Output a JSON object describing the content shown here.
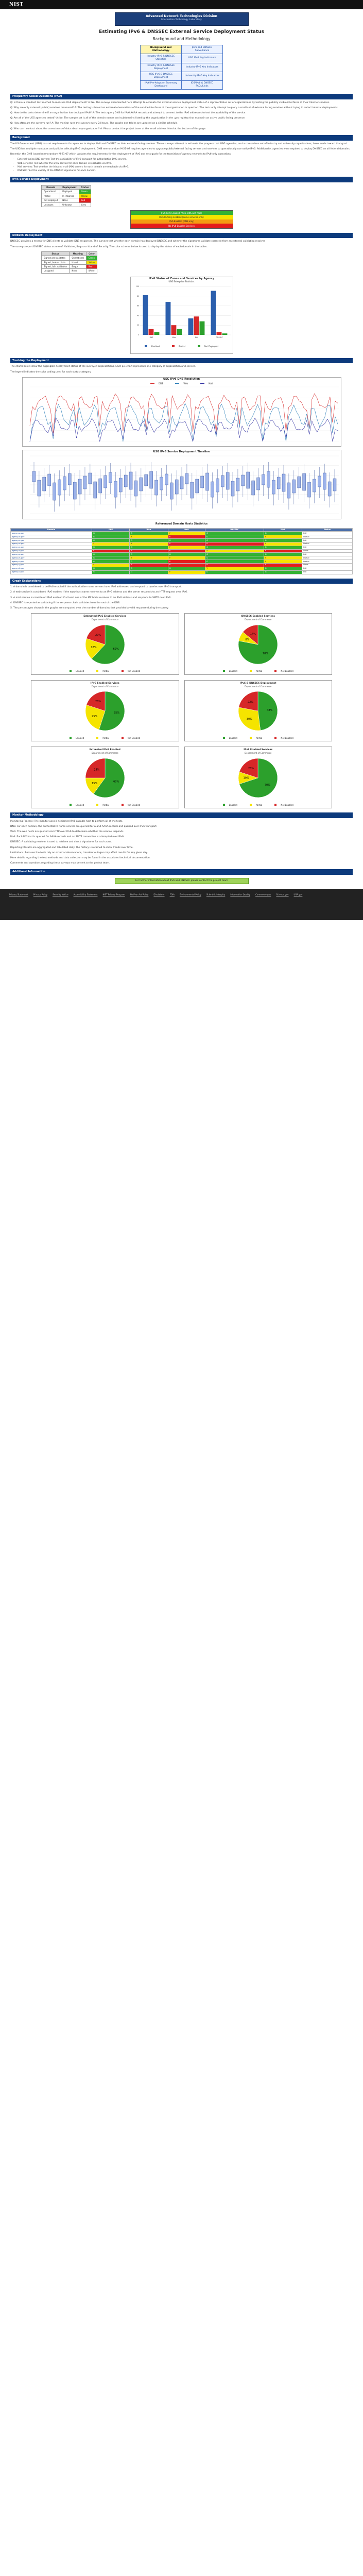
{
  "header": {
    "logo": "NIST",
    "banner_line1": "Advanced Network Technologies Division",
    "banner_line2": "Information Technology Laboratory"
  },
  "title": "Estimating IPv6 & DNSSEC External Service Deployment Status",
  "subtitle": "Background and Methodology",
  "nav": [
    [
      "Background and Methodology",
      "Ipv6 and DNSSEC Surveillance"
    ],
    [
      "Industry IPv6 & DNSSEC Statistics",
      "USG IPv6 Key Indicators"
    ],
    [
      "Industry IPv6 & DNSSEC Deployment",
      "Industry IPv6 Key Indicators"
    ],
    [
      "USG IPv6 & DNSSEC Deployment",
      "University IPv6 Key Indicators"
    ],
    [
      "IPv6 Pre-Adoption Summary Dashboard",
      "IDS/IPv6 & DNSSEC FAQs/Links"
    ]
  ],
  "sections": {
    "s1": "Frequently Asked Questions (FAQ)",
    "s2": "Background",
    "s3": "IPv6 Service Deployment",
    "s4": "DNSSEC Deployment",
    "s5": "Tracking the Deployment",
    "s6": "Graph Explanations",
    "s7": "Monitor Methodology",
    "s8": "Additional Information"
  },
  "faq": [
    "Q: Is there a standard test method to measure IPv6 deployment? A: No. The surveys documented here attempt to estimate the external service deployment status of a representative set of organizations by testing the publicly visible interfaces of their Internet services.",
    "Q: Why are only external (public) services measured? A: The testing is based on external observations of the service interfaces of the organization in question. The tests only attempt to query a small set of external facing services without trying to detect internal deployments.",
    "Q: How do the tests determine if an organization has deployed IPv6? A: The tests query DNS for IPv6 AAAA records and attempt to connect to the IPv6 addresses to test the availability of the service.",
    "Q: Are all of the USG agencies tested? A: No. The sample set is all of the domain names and subdomains listed by the organization in the .gov registry that maintain an active public facing presence.",
    "Q: How often are the surveys run? A: The monitor runs the surveys every 24 hours. The graphs and tables are updated on a similar schedule.",
    "Q: Who can I contact about the correctness of data about my organization? A: Please contact the project team at the email address listed at the bottom of this page."
  ],
  "background_paras": [
    "The US Government (USG) has set requirements for agencies to deploy IPv6 and DNSSEC on their external facing services. These surveys attempt to estimate the progress that USG agencies, and a comparison set of industry and university organizations, have made toward that goal.",
    "The USG has multiple mandates and policies affecting IPv6 deployment. OMB memorandum M-21-07 requires agencies to upgrade public/external facing servers and services to operationally use native IPv6. Additionally, agencies were required to deploy DNSSEC on all federal domains.",
    "Recently, the OMB issued memorandum M-21-07 which updates the requirements for the deployment of IPv6 and sets goals for the transition of agency networks to IPv6-only operations."
  ],
  "bullets": [
    "External facing DNS servers: Test the availability of IPv6 transport for authoritative DNS servers.",
    "Web services: Test whether the www service for each domain is reachable via IPv6.",
    "Mail services: Test whether the inbound mail (MX) servers for each domain are reachable via IPv6.",
    "DNSSEC: Test the validity of the DNSSEC signatures for each domain."
  ],
  "table1": {
    "headers": [
      "Domain",
      "Deployment",
      "Status"
    ],
    "rows": [
      [
        "Operational",
        "Deployed",
        "Green"
      ],
      [
        "Partial",
        "In Progress",
        "Yellow"
      ],
      [
        "Not Deployed",
        "None",
        "Red"
      ],
      [
        "Unknown",
        "Unknown",
        "Grey"
      ]
    ]
  },
  "box1": [
    "IPv6 Fully Enabled (Web, DNS and Mail)",
    "IPv6 Partially Enabled (Some services only)",
    "IPv6 Enabled (DNS only)",
    "No IPv6 Enabled Services"
  ],
  "dnssec_paras": [
    "DNSSEC provides a means for DNS clients to validate DNS responses. The surveys test whether each domain has deployed DNSSEC and whether the signatures validate correctly from an external validating resolver.",
    "The surveys report DNSSEC status as one of: Validates, Bogus or Island of Security. The color scheme below is used to display the status of each domain in the tables."
  ],
  "table2": {
    "headers": [
      "Status",
      "Meaning",
      "Color"
    ],
    "rows": [
      [
        "Signed and validates",
        "Operational",
        "Green"
      ],
      [
        "Signed, broken chain",
        "Island",
        "Yellow"
      ],
      [
        "Signed, fails validation",
        "Bogus",
        "Red"
      ],
      [
        "Unsigned",
        "None",
        "White"
      ]
    ]
  },
  "chart_bar": {
    "title": "IPv6 Status of Zones and Services by Agency",
    "subtitle": "USG Enterprise Statistics",
    "categories": [
      "DNS",
      "Web",
      "Mail",
      "DNSSEC"
    ],
    "series": [
      {
        "name": "Enabled",
        "color": "#2b5fad",
        "values": [
          82,
          68,
          34,
          91
        ]
      },
      {
        "name": "Partial",
        "color": "#d62728",
        "values": [
          12,
          20,
          38,
          6
        ]
      },
      {
        "name": "Not Deployed",
        "color": "#2ca02c",
        "values": [
          6,
          12,
          28,
          3
        ]
      }
    ]
  },
  "chart_line": {
    "title": "USG IPv6 DNS Resolution",
    "legend": [
      "DNS",
      "Web",
      "Mail"
    ]
  },
  "chart_box": {
    "title": "USG IPv6 Service Deployment Timeline"
  },
  "big_table": {
    "title": "Referenced Domain Hosts Statistics",
    "headers": [
      "Domain",
      "DNS",
      "Web",
      "Mail",
      "DNSSEC",
      "IPv6",
      "Status"
    ],
    "rows": [
      [
        "agency-a.gov",
        "G",
        "G",
        "Y",
        "G",
        "G",
        "Full"
      ],
      [
        "agency-b.gov",
        "G",
        "Y",
        "R",
        "G",
        "Y",
        "Partial"
      ],
      [
        "agency-c.gov",
        "G",
        "G",
        "G",
        "G",
        "G",
        "Full"
      ],
      [
        "agency-d.gov",
        "Y",
        "Y",
        "R",
        "R",
        "Y",
        "Partial"
      ],
      [
        "agency-e.gov",
        "G",
        "G",
        "Y",
        "G",
        "G",
        "Full"
      ],
      [
        "agency-f.gov",
        "R",
        "R",
        "R",
        "Y",
        "R",
        "None"
      ],
      [
        "agency-g.gov",
        "G",
        "G",
        "G",
        "G",
        "G",
        "Full"
      ],
      [
        "agency-h.gov",
        "G",
        "Y",
        "Y",
        "G",
        "Y",
        "Partial"
      ],
      [
        "agency-i.gov",
        "G",
        "G",
        "R",
        "G",
        "Y",
        "Partial"
      ],
      [
        "agency-j.gov",
        "Y",
        "R",
        "R",
        "R",
        "R",
        "None"
      ],
      [
        "agency-k.gov",
        "G",
        "G",
        "G",
        "Y",
        "G",
        "Full"
      ],
      [
        "agency-l.gov",
        "G",
        "G",
        "Y",
        "G",
        "G",
        "Full"
      ]
    ]
  },
  "graph_paras": [
    "1. A domain is considered to be IPv6 enabled if the authoritative name servers have IPv6 addresses, and respond to queries over IPv6 transport.",
    "2. A web service is considered IPv6 enabled if the www host name resolves to an IPv6 address and the server responds to an HTTP request over IPv6.",
    "3. A mail service is considered IPv6 enabled if at least one of the MX hosts resolves to an IPv6 address and responds to SMTP over IPv6.",
    "4. DNSSEC is reported as validating if the response chain validates from the root of the DNS.",
    "5. The percentages shown in the graphs are computed over the number of domains that provided a valid response during the survey."
  ],
  "tracking_paras": [
    "The charts below show the aggregate deployment status of the surveyed organizations. Each pie chart represents one category of organization and service.",
    "The legend indicates the color coding used for each status category."
  ],
  "pies": [
    {
      "title": "Estimated IPv6 Enabled Services",
      "sub": "Department of Commerce",
      "values": [
        62,
        18,
        20
      ],
      "colors": [
        "#2ca02c",
        "#f5e400",
        "#d62728"
      ]
    },
    {
      "title": "DNSSEC Enabled Services",
      "sub": "Department of Commerce",
      "values": [
        78,
        8,
        14
      ],
      "colors": [
        "#2ca02c",
        "#f5e400",
        "#d62728"
      ]
    },
    {
      "title": "IPv6 Enabled Services",
      "sub": "Department of Commerce",
      "values": [
        55,
        25,
        20
      ],
      "colors": [
        "#2ca02c",
        "#f5e400",
        "#d62728"
      ]
    },
    {
      "title": "IPv6 & DNSSEC Deployment",
      "sub": "Department of Commerce",
      "values": [
        48,
        30,
        22
      ],
      "colors": [
        "#2ca02c",
        "#f5e400",
        "#d62728"
      ]
    },
    {
      "title": "Estimated IPv6 Enabled",
      "sub": "Department of Commerce",
      "values": [
        60,
        15,
        25
      ],
      "colors": [
        "#2ca02c",
        "#f5e400",
        "#d62728"
      ]
    },
    {
      "title": "IPv6 Enabled Services",
      "sub": "Department of Commerce",
      "values": [
        70,
        10,
        20
      ],
      "colors": [
        "#2ca02c",
        "#f5e400",
        "#d62728"
      ]
    }
  ],
  "pie_legend": [
    "Enabled",
    "Partial",
    "Not Enabled"
  ],
  "monitor_paras": [
    "Monitoring Process: The monitor uses a dedicated IPv6 capable host to perform all of the tests.",
    "DNS: For each domain, the authoritative name servers are queried for A and AAAA records and queried over IPv6 transport.",
    "Web: The web hosts are queried via HTTP over IPv6 to determine whether the service responds.",
    "Mail: Each MX host is queried for AAAA records and an SMTP connection is attempted over IPv6.",
    "DNSSEC: A validating resolver is used to retrieve and check signatures for each zone.",
    "Reporting: Results are aggregated and tabulated daily; the history is retained to show trends over time.",
    "Limitations: Because the tests rely on external observations, transient outages may affect results for any given day."
  ],
  "extra_paras": [
    "More details regarding the test methods and data collection may be found in the associated technical documentation.",
    "Comments and questions regarding these surveys may be sent to the project team."
  ],
  "addl_box": "For further information about IPv6 and DNSSEC please contact the project team",
  "footer_links": [
    "Privacy Statement",
    "Privacy Policy",
    "Security Notice",
    "Accessibility Statement",
    "NIST Privacy Program",
    "No Fear Act Policy",
    "Disclaimer",
    "FOIA",
    "Environmental Policy",
    "Scientific Integrity",
    "Information Quality",
    "Commerce.gov",
    "Science.gov",
    "USA.gov"
  ]
}
